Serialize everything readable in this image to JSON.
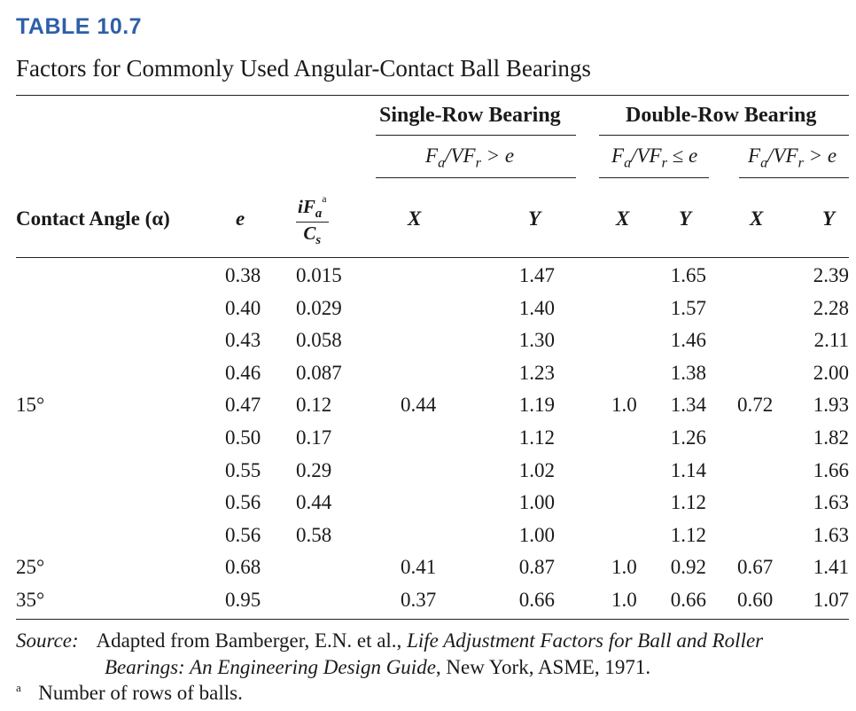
{
  "table_label": "TABLE 10.7",
  "caption": "Factors for Commonly Used Angular-Contact Ball Bearings",
  "headers": {
    "single_row": "Single-Row Bearing",
    "double_row": "Double-Row Bearing",
    "cond_single": "Fa/VFr > e",
    "cond_double_le": "Fa/VFr ≤ e",
    "cond_double_gt": "Fa/VFr > e",
    "contact_angle": "Contact Angle (α)",
    "e": "e",
    "ifa_num": "iFa",
    "ifa_sup": "a",
    "ifa_den": "Cs",
    "x": "X",
    "y": "Y"
  },
  "rows": [
    {
      "angle": "",
      "e": "0.38",
      "ifa": "0.015",
      "sx": "",
      "sy": "1.47",
      "dlx": "",
      "dly": "1.65",
      "dgx": "",
      "dgy": "2.39"
    },
    {
      "angle": "",
      "e": "0.40",
      "ifa": "0.029",
      "sx": "",
      "sy": "1.40",
      "dlx": "",
      "dly": "1.57",
      "dgx": "",
      "dgy": "2.28"
    },
    {
      "angle": "",
      "e": "0.43",
      "ifa": "0.058",
      "sx": "",
      "sy": "1.30",
      "dlx": "",
      "dly": "1.46",
      "dgx": "",
      "dgy": "2.11"
    },
    {
      "angle": "",
      "e": "0.46",
      "ifa": "0.087",
      "sx": "",
      "sy": "1.23",
      "dlx": "",
      "dly": "1.38",
      "dgx": "",
      "dgy": "2.00"
    },
    {
      "angle": "15°",
      "e": "0.47",
      "ifa": "0.12",
      "sx": "0.44",
      "sy": "1.19",
      "dlx": "1.0",
      "dly": "1.34",
      "dgx": "0.72",
      "dgy": "1.93"
    },
    {
      "angle": "",
      "e": "0.50",
      "ifa": "0.17",
      "sx": "",
      "sy": "1.12",
      "dlx": "",
      "dly": "1.26",
      "dgx": "",
      "dgy": "1.82"
    },
    {
      "angle": "",
      "e": "0.55",
      "ifa": "0.29",
      "sx": "",
      "sy": "1.02",
      "dlx": "",
      "dly": "1.14",
      "dgx": "",
      "dgy": "1.66"
    },
    {
      "angle": "",
      "e": "0.56",
      "ifa": "0.44",
      "sx": "",
      "sy": "1.00",
      "dlx": "",
      "dly": "1.12",
      "dgx": "",
      "dgy": "1.63"
    },
    {
      "angle": "",
      "e": "0.56",
      "ifa": "0.58",
      "sx": "",
      "sy": "1.00",
      "dlx": "",
      "dly": "1.12",
      "dgx": "",
      "dgy": "1.63"
    },
    {
      "angle": "25°",
      "e": "0.68",
      "ifa": "",
      "sx": "0.41",
      "sy": "0.87",
      "dlx": "1.0",
      "dly": "0.92",
      "dgx": "0.67",
      "dgy": "1.41"
    },
    {
      "angle": "35°",
      "e": "0.95",
      "ifa": "",
      "sx": "0.37",
      "sy": "0.66",
      "dlx": "1.0",
      "dly": "0.66",
      "dgx": "0.60",
      "dgy": "1.07"
    }
  ],
  "source": {
    "label": "Source:",
    "prefix": "Adapted from Bamberger, E.N. et al.,",
    "title_line1": "Life Adjustment Factors for Ball and Roller",
    "title_line2": "Bearings: An Engineering Design Guide",
    "suffix": ", New York, ASME, 1971."
  },
  "footnote": {
    "mark": "a",
    "text": "Number of rows of balls."
  }
}
